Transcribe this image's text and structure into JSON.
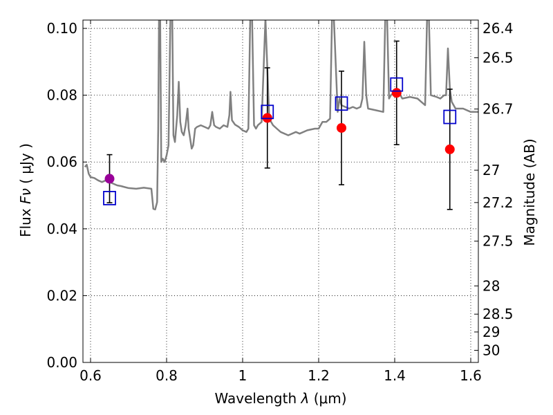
{
  "chart_data": {
    "type": "scatter",
    "title": "",
    "xlabel_prefix": "Wavelength",
    "xlabel_symbol": "λ",
    "xlabel_units": "(μm)",
    "ylabel_prefix": "Flux",
    "ylabel_symbol": "Fν",
    "ylabel_units": "( μJy )",
    "y2label": "Magnitude (AB)",
    "xlim": [
      0.58,
      1.62
    ],
    "ylim": [
      0.0,
      0.1025
    ],
    "grid": true,
    "x_ticks": [
      {
        "value": 0.6,
        "label": "0.6"
      },
      {
        "value": 0.8,
        "label": "0.8"
      },
      {
        "value": 1.0,
        "label": "1"
      },
      {
        "value": 1.2,
        "label": "1.2"
      },
      {
        "value": 1.4,
        "label": "1.4"
      },
      {
        "value": 1.6,
        "label": "1.6"
      }
    ],
    "y_ticks": [
      {
        "value": 0.0,
        "label": "0.00"
      },
      {
        "value": 0.02,
        "label": "0.02"
      },
      {
        "value": 0.04,
        "label": "0.04"
      },
      {
        "value": 0.06,
        "label": "0.06"
      },
      {
        "value": 0.08,
        "label": "0.08"
      },
      {
        "value": 0.1,
        "label": "0.10"
      }
    ],
    "y2_ticks": [
      {
        "value": 26.4,
        "label": "26.4"
      },
      {
        "value": 26.5,
        "label": "26.5"
      },
      {
        "value": 26.7,
        "label": "26.7"
      },
      {
        "value": 27.0,
        "label": "27"
      },
      {
        "value": 27.2,
        "label": "27.2"
      },
      {
        "value": 27.5,
        "label": "27.5"
      },
      {
        "value": 28.0,
        "label": "28"
      },
      {
        "value": 28.5,
        "label": "28.5"
      },
      {
        "value": 29.0,
        "label": "29"
      },
      {
        "value": 30.0,
        "label": "30"
      }
    ],
    "series": [
      {
        "kind": "line",
        "color": "#808080",
        "points": [
          [
            0.585,
            0.0585
          ],
          [
            0.59,
            0.0592
          ],
          [
            0.595,
            0.0565
          ],
          [
            0.6,
            0.0555
          ],
          [
            0.61,
            0.0552
          ],
          [
            0.62,
            0.0545
          ],
          [
            0.63,
            0.054
          ],
          [
            0.64,
            0.0545
          ],
          [
            0.65,
            0.054
          ],
          [
            0.66,
            0.0535
          ],
          [
            0.67,
            0.053
          ],
          [
            0.68,
            0.0528
          ],
          [
            0.69,
            0.0525
          ],
          [
            0.7,
            0.0522
          ],
          [
            0.72,
            0.052
          ],
          [
            0.74,
            0.0523
          ],
          [
            0.76,
            0.052
          ],
          [
            0.765,
            0.046
          ],
          [
            0.77,
            0.0458
          ],
          [
            0.775,
            0.048
          ],
          [
            0.778,
            0.07
          ],
          [
            0.78,
            0.103
          ],
          [
            0.783,
            0.103
          ],
          [
            0.786,
            0.06
          ],
          [
            0.79,
            0.061
          ],
          [
            0.795,
            0.06
          ],
          [
            0.8,
            0.062
          ],
          [
            0.805,
            0.065
          ],
          [
            0.81,
            0.103
          ],
          [
            0.815,
            0.103
          ],
          [
            0.818,
            0.068
          ],
          [
            0.822,
            0.066
          ],
          [
            0.828,
            0.074
          ],
          [
            0.832,
            0.084
          ],
          [
            0.836,
            0.072
          ],
          [
            0.84,
            0.069
          ],
          [
            0.845,
            0.068
          ],
          [
            0.85,
            0.071
          ],
          [
            0.855,
            0.076
          ],
          [
            0.858,
            0.07
          ],
          [
            0.862,
            0.067
          ],
          [
            0.866,
            0.064
          ],
          [
            0.87,
            0.065
          ],
          [
            0.875,
            0.07
          ],
          [
            0.88,
            0.0705
          ],
          [
            0.89,
            0.071
          ],
          [
            0.9,
            0.0705
          ],
          [
            0.91,
            0.07
          ],
          [
            0.915,
            0.071
          ],
          [
            0.92,
            0.075
          ],
          [
            0.925,
            0.071
          ],
          [
            0.93,
            0.0705
          ],
          [
            0.94,
            0.07
          ],
          [
            0.95,
            0.071
          ],
          [
            0.96,
            0.0705
          ],
          [
            0.965,
            0.074
          ],
          [
            0.968,
            0.081
          ],
          [
            0.972,
            0.0725
          ],
          [
            0.98,
            0.0712
          ],
          [
            0.99,
            0.0705
          ],
          [
            1.0,
            0.0695
          ],
          [
            1.01,
            0.069
          ],
          [
            1.015,
            0.07
          ],
          [
            1.02,
            0.103
          ],
          [
            1.025,
            0.103
          ],
          [
            1.03,
            0.071
          ],
          [
            1.035,
            0.07
          ],
          [
            1.04,
            0.071
          ],
          [
            1.05,
            0.072
          ],
          [
            1.06,
            0.103
          ],
          [
            1.07,
            0.073
          ],
          [
            1.08,
            0.071
          ],
          [
            1.09,
            0.07
          ],
          [
            1.1,
            0.069
          ],
          [
            1.12,
            0.068
          ],
          [
            1.14,
            0.069
          ],
          [
            1.15,
            0.0685
          ],
          [
            1.17,
            0.0695
          ],
          [
            1.19,
            0.07
          ],
          [
            1.2,
            0.07
          ],
          [
            1.21,
            0.072
          ],
          [
            1.22,
            0.072
          ],
          [
            1.23,
            0.073
          ],
          [
            1.235,
            0.103
          ],
          [
            1.24,
            0.103
          ],
          [
            1.25,
            0.075
          ],
          [
            1.255,
            0.079
          ],
          [
            1.26,
            0.077
          ],
          [
            1.27,
            0.0765
          ],
          [
            1.28,
            0.076
          ],
          [
            1.29,
            0.0765
          ],
          [
            1.3,
            0.076
          ],
          [
            1.31,
            0.0765
          ],
          [
            1.315,
            0.079
          ],
          [
            1.32,
            0.096
          ],
          [
            1.325,
            0.08
          ],
          [
            1.33,
            0.076
          ],
          [
            1.35,
            0.0755
          ],
          [
            1.37,
            0.075
          ],
          [
            1.375,
            0.103
          ],
          [
            1.38,
            0.103
          ],
          [
            1.385,
            0.079
          ],
          [
            1.39,
            0.08
          ],
          [
            1.4,
            0.081
          ],
          [
            1.41,
            0.081
          ],
          [
            1.42,
            0.079
          ],
          [
            1.44,
            0.0795
          ],
          [
            1.46,
            0.079
          ],
          [
            1.47,
            0.078
          ],
          [
            1.48,
            0.077
          ],
          [
            1.485,
            0.103
          ],
          [
            1.49,
            0.103
          ],
          [
            1.495,
            0.08
          ],
          [
            1.51,
            0.0795
          ],
          [
            1.52,
            0.079
          ],
          [
            1.53,
            0.08
          ],
          [
            1.535,
            0.08
          ],
          [
            1.54,
            0.094
          ],
          [
            1.545,
            0.082
          ],
          [
            1.55,
            0.078
          ],
          [
            1.56,
            0.076
          ],
          [
            1.58,
            0.076
          ],
          [
            1.6,
            0.075
          ],
          [
            1.62,
            0.075
          ]
        ]
      },
      {
        "kind": "errorbar-points",
        "color": "#ff0000",
        "points": [
          {
            "x": 1.065,
            "y": 0.0732,
            "yerr": 0.015
          },
          {
            "x": 1.26,
            "y": 0.0702,
            "yerr": 0.017
          },
          {
            "x": 1.405,
            "y": 0.0807,
            "yerr": 0.0155
          },
          {
            "x": 1.545,
            "y": 0.0638,
            "yerr": 0.018
          }
        ]
      },
      {
        "kind": "errorbar-points",
        "color": "#990099",
        "points": [
          {
            "x": 0.65,
            "y": 0.055,
            "yerr": 0.0072
          }
        ]
      },
      {
        "kind": "squares",
        "color": "#0000cc",
        "points": [
          [
            0.65,
            0.0492
          ],
          [
            1.065,
            0.075
          ],
          [
            1.26,
            0.0775
          ],
          [
            1.405,
            0.0832
          ],
          [
            1.545,
            0.0735
          ]
        ]
      }
    ]
  }
}
